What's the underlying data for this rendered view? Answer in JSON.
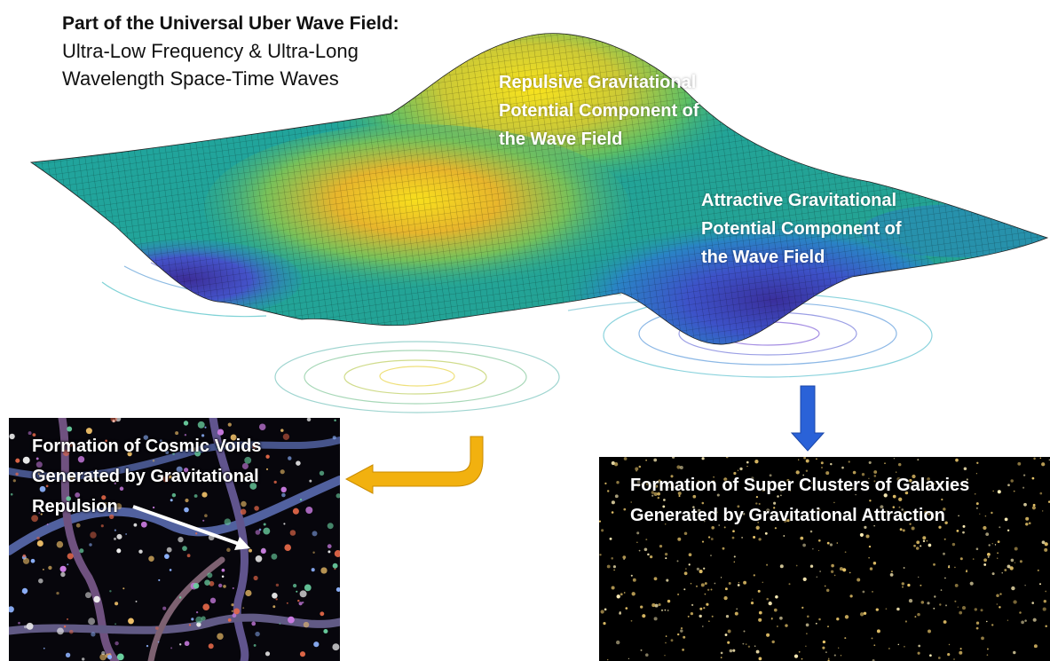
{
  "header": {
    "title": "Part of the Universal Uber Wave Field:",
    "subtitle_line1": "Ultra-Low Frequency & Ultra-Long",
    "subtitle_line2": "Wavelength  Space-Time Waves"
  },
  "wave_labels": {
    "repulsive": [
      "Repulsive Gravitational",
      "Potential Component of",
      "the Wave Field"
    ],
    "attractive": [
      "Attractive Gravitational",
      "Potential Component of",
      "the Wave Field"
    ]
  },
  "panels": {
    "voids": {
      "lines": [
        "Formation of Cosmic Voids",
        "Generated by Gravitational",
        "Repulsion"
      ]
    },
    "clusters": {
      "lines": [
        "Formation of Super Clusters of Galaxies",
        "Generated by Gravitational Attraction"
      ]
    }
  },
  "colors": {
    "surface_high": "#f7e11e",
    "surface_mid": "#22a39a",
    "surface_low": "#3b2f9e",
    "orange_arrow": "#f2b10f",
    "blue_arrow": "#2a62d8",
    "cluster_star": "#e8c56a"
  }
}
